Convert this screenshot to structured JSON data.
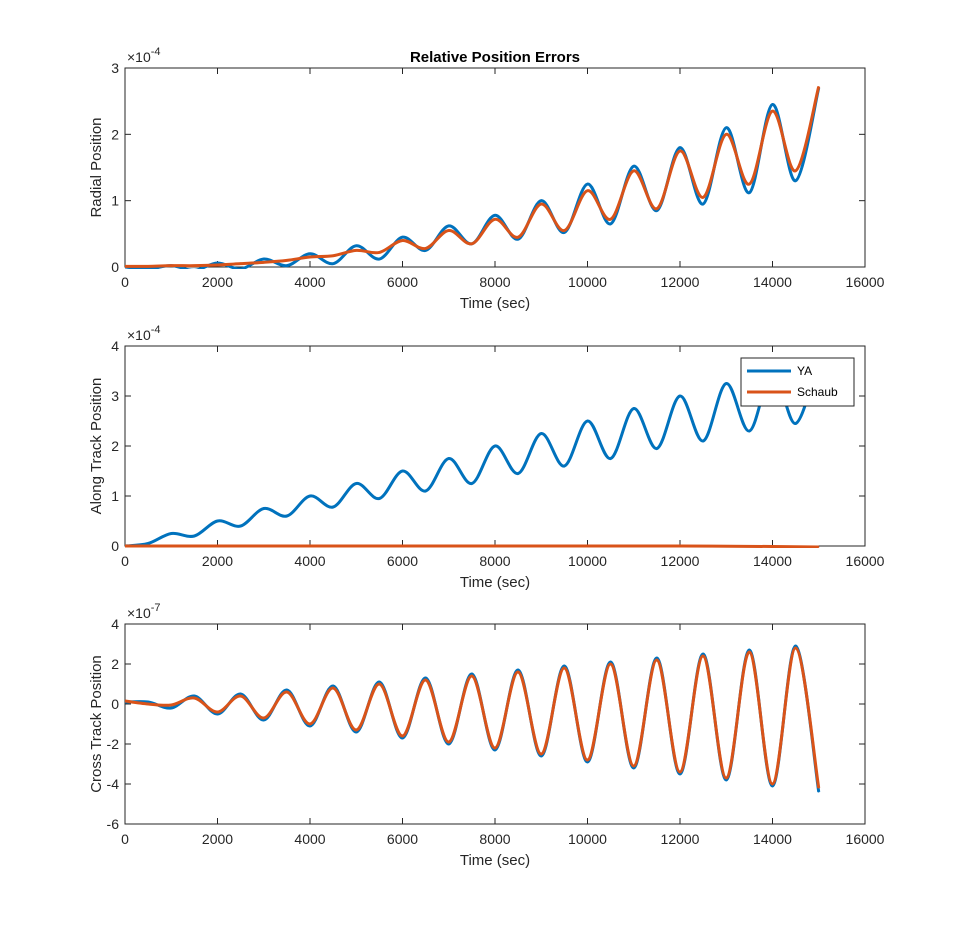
{
  "figure": {
    "title": "Relative Position Errors"
  },
  "legend": {
    "entries": [
      "YA",
      "Schaub"
    ]
  },
  "chart_data": [
    {
      "type": "line",
      "title": "Relative Position Errors",
      "xlabel": "Time (sec)",
      "ylabel": "Radial Position",
      "xlim": [
        0,
        16000
      ],
      "ylim": [
        0,
        3
      ],
      "y_exponent_label": "×10",
      "y_exponent_power": "-4",
      "xticks": [
        0,
        2000,
        4000,
        6000,
        8000,
        10000,
        12000,
        14000,
        16000
      ],
      "yticks": [
        0,
        1,
        2,
        3
      ],
      "grid": false,
      "series": [
        {
          "name": "YA",
          "color": "#0072BD",
          "x": [
            0,
            500,
            1000,
            1500,
            2000,
            2500,
            3000,
            3500,
            4000,
            4500,
            5000,
            5500,
            6000,
            6500,
            7000,
            7500,
            8000,
            8500,
            9000,
            9500,
            10000,
            10500,
            11000,
            11500,
            12000,
            12500,
            13000,
            13500,
            14000,
            14500,
            15000
          ],
          "y": [
            0,
            -0.03,
            0.02,
            -0.05,
            0.06,
            -0.03,
            0.12,
            0.02,
            0.2,
            0.05,
            0.32,
            0.12,
            0.45,
            0.25,
            0.62,
            0.35,
            0.78,
            0.42,
            1.0,
            0.52,
            1.25,
            0.65,
            1.52,
            0.85,
            1.8,
            0.95,
            2.1,
            1.12,
            2.45,
            1.3,
            2.7
          ]
        },
        {
          "name": "Schaub",
          "color": "#D95319",
          "x": [
            0,
            500,
            1000,
            1500,
            2000,
            2500,
            3000,
            3500,
            4000,
            4500,
            5000,
            5500,
            6000,
            6500,
            7000,
            7500,
            8000,
            8500,
            9000,
            9500,
            10000,
            10500,
            11000,
            11500,
            12000,
            12500,
            13000,
            13500,
            14000,
            14500,
            15000
          ],
          "y": [
            0.01,
            0.01,
            0.02,
            0.02,
            0.03,
            0.05,
            0.07,
            0.1,
            0.15,
            0.17,
            0.25,
            0.22,
            0.4,
            0.28,
            0.55,
            0.35,
            0.72,
            0.45,
            0.95,
            0.55,
            1.15,
            0.72,
            1.45,
            0.88,
            1.75,
            1.05,
            2.0,
            1.25,
            2.35,
            1.45,
            2.72
          ]
        }
      ]
    },
    {
      "type": "line",
      "xlabel": "Time (sec)",
      "ylabel": "Along Track Position",
      "xlim": [
        0,
        16000
      ],
      "ylim": [
        0,
        4
      ],
      "y_exponent_label": "×10",
      "y_exponent_power": "-4",
      "xticks": [
        0,
        2000,
        4000,
        6000,
        8000,
        10000,
        12000,
        14000,
        16000
      ],
      "yticks": [
        0,
        1,
        2,
        3,
        4
      ],
      "legend_position": "top-right",
      "grid": false,
      "series": [
        {
          "name": "YA",
          "color": "#0072BD",
          "x": [
            0,
            500,
            1000,
            1500,
            2000,
            2500,
            3000,
            3500,
            4000,
            4500,
            5000,
            5500,
            6000,
            6500,
            7000,
            7500,
            8000,
            8500,
            9000,
            9500,
            10000,
            10500,
            11000,
            11500,
            12000,
            12500,
            13000,
            13500,
            14000,
            14500,
            15000
          ],
          "y": [
            0,
            0.05,
            0.25,
            0.2,
            0.5,
            0.4,
            0.75,
            0.6,
            1.0,
            0.78,
            1.25,
            0.95,
            1.5,
            1.1,
            1.75,
            1.25,
            2.0,
            1.45,
            2.25,
            1.6,
            2.5,
            1.75,
            2.75,
            1.95,
            3.0,
            2.1,
            3.25,
            2.3,
            3.5,
            2.45,
            3.75
          ]
        },
        {
          "name": "Schaub",
          "color": "#D95319",
          "x": [
            0,
            2000,
            4000,
            6000,
            8000,
            10000,
            12000,
            14000,
            15000
          ],
          "y": [
            0,
            0,
            0,
            0,
            0,
            0,
            0,
            -0.01,
            -0.02
          ]
        }
      ]
    },
    {
      "type": "line",
      "xlabel": "Time (sec)",
      "ylabel": "Cross Track Position",
      "xlim": [
        0,
        16000
      ],
      "ylim": [
        -6,
        4
      ],
      "y_exponent_label": "×10",
      "y_exponent_power": "-7",
      "xticks": [
        0,
        2000,
        4000,
        6000,
        8000,
        10000,
        12000,
        14000,
        16000
      ],
      "yticks": [
        -6,
        -4,
        -2,
        0,
        2,
        4
      ],
      "grid": false,
      "series": [
        {
          "name": "YA",
          "color": "#0072BD",
          "x": [
            0,
            500,
            1000,
            1500,
            2000,
            2500,
            3000,
            3500,
            4000,
            4500,
            5000,
            5500,
            6000,
            6500,
            7000,
            7500,
            8000,
            8500,
            9000,
            9500,
            10000,
            10500,
            11000,
            11500,
            12000,
            12500,
            13000,
            13500,
            14000,
            14500,
            15000
          ],
          "y": [
            0.1,
            0.1,
            -0.2,
            0.4,
            -0.5,
            0.5,
            -0.8,
            0.7,
            -1.1,
            0.9,
            -1.4,
            1.1,
            -1.7,
            1.3,
            -2.0,
            1.5,
            -2.3,
            1.7,
            -2.6,
            1.9,
            -2.9,
            2.1,
            -3.2,
            2.3,
            -3.5,
            2.5,
            -3.8,
            2.7,
            -4.1,
            2.9,
            -4.4
          ]
        },
        {
          "name": "Schaub",
          "color": "#D95319",
          "x": [
            0,
            500,
            1000,
            1500,
            2000,
            2500,
            3000,
            3500,
            4000,
            4500,
            5000,
            5500,
            6000,
            6500,
            7000,
            7500,
            8000,
            8500,
            9000,
            9500,
            10000,
            10500,
            11000,
            11500,
            12000,
            12500,
            13000,
            13500,
            14000,
            14500,
            15000
          ],
          "y": [
            0.15,
            0.0,
            -0.05,
            0.3,
            -0.4,
            0.4,
            -0.7,
            0.6,
            -1.0,
            0.8,
            -1.3,
            1.0,
            -1.6,
            1.2,
            -1.9,
            1.4,
            -2.2,
            1.6,
            -2.5,
            1.8,
            -2.8,
            2.0,
            -3.1,
            2.2,
            -3.4,
            2.4,
            -3.7,
            2.6,
            -4.0,
            2.8,
            -4.2
          ]
        }
      ]
    }
  ]
}
